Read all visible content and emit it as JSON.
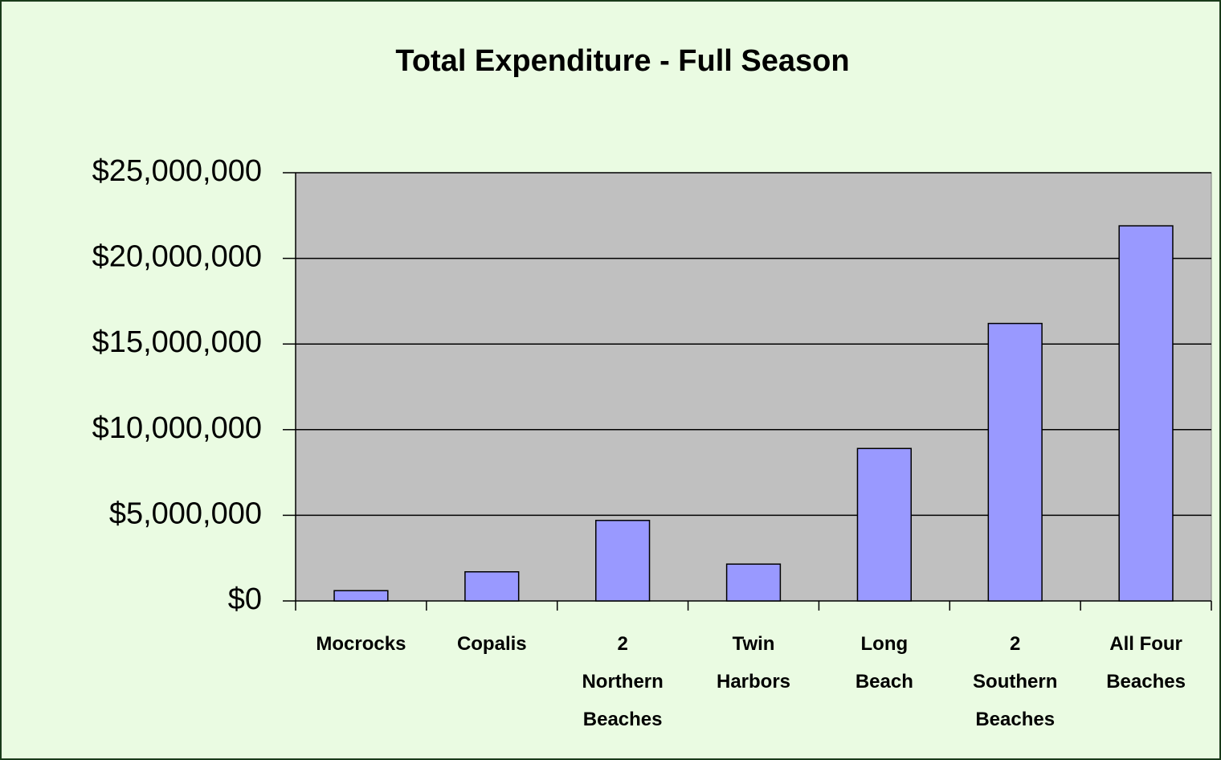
{
  "chart_data": {
    "type": "bar",
    "title": "Total Expenditure - Full Season",
    "categories": [
      "Mocrocks",
      "Copalis",
      "2 Northern Beaches",
      "Twin Harbors",
      "Long Beach",
      "2 Southern Beaches",
      "All Four Beaches"
    ],
    "values": [
      600000,
      1700000,
      4700000,
      2150000,
      8900000,
      16200000,
      21900000
    ],
    "color": "#9999ff",
    "ylim": [
      0,
      25000000
    ],
    "yticks": [
      {
        "value": 0,
        "label": "$0"
      },
      {
        "value": 5000000,
        "label": "$5,000,000"
      },
      {
        "value": 10000000,
        "label": "$10,000,000"
      },
      {
        "value": 15000000,
        "label": "$15,000,000"
      },
      {
        "value": 20000000,
        "label": "$20,000,000"
      },
      {
        "value": 25000000,
        "label": "$25,000,000"
      }
    ],
    "grid": true
  }
}
